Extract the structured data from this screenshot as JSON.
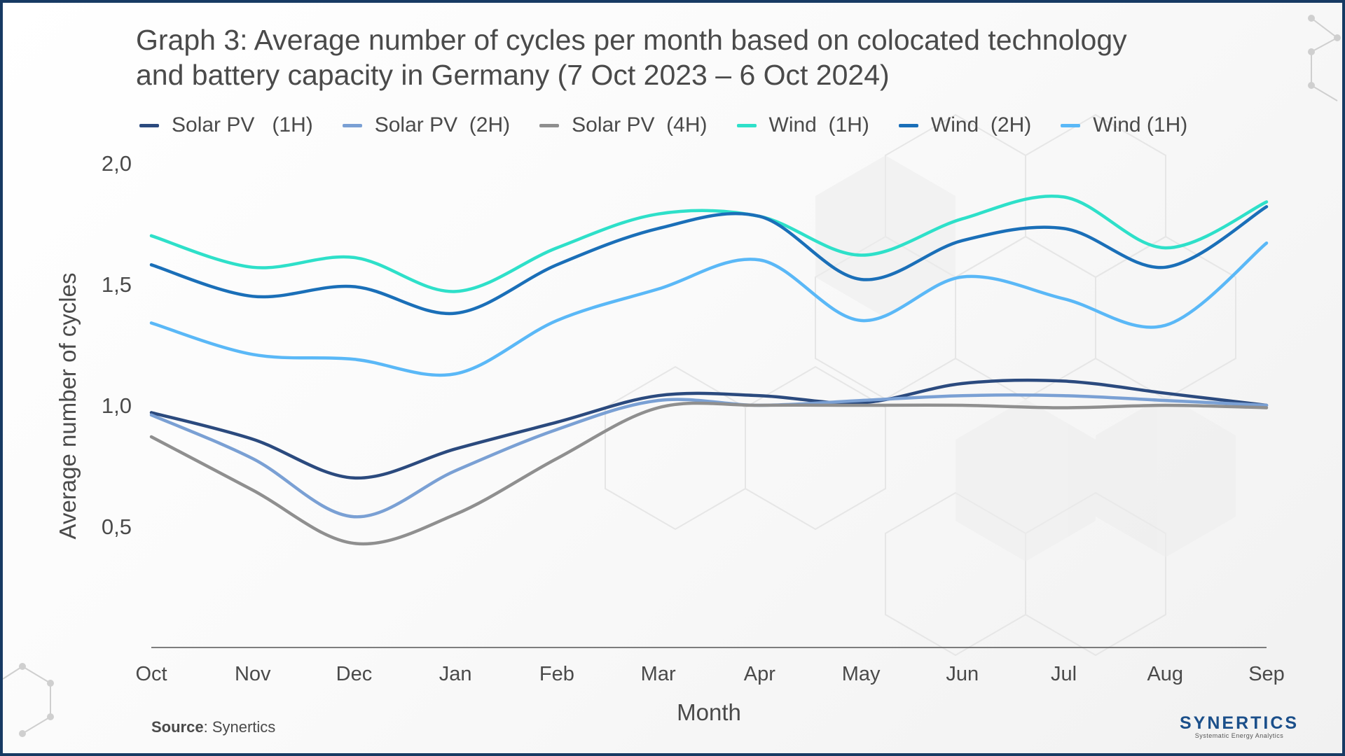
{
  "title_line1": "Graph 3: Average number of cycles per month based on colocated technology",
  "title_line2": "and battery capacity in Germany (7 Oct 2023 – 6 Oct 2024)",
  "source_label": "Source",
  "source_value": ": Synertics",
  "brand": {
    "name": "SYNERTICS",
    "tagline": "Systematic Energy Analytics"
  },
  "chart_data": {
    "type": "line",
    "xlabel": "Month",
    "ylabel": "Average number of cycles",
    "ylim": [
      0,
      2.0
    ],
    "yticks": [
      "0,5",
      "1,0",
      "1,5",
      "2,0"
    ],
    "ytick_values": [
      0.5,
      1.0,
      1.5,
      2.0
    ],
    "grid": false,
    "legend_position": "top",
    "categories": [
      "Oct",
      "Nov",
      "Dec",
      "Jan",
      "Feb",
      "Mar",
      "Apr",
      "May",
      "Jun",
      "Jul",
      "Aug",
      "Sep"
    ],
    "series": [
      {
        "name": "Solar PV   (1H)",
        "color": "#2b4a7e",
        "values": [
          0.97,
          0.86,
          0.7,
          0.82,
          0.93,
          1.04,
          1.04,
          1.01,
          1.09,
          1.1,
          1.05,
          1.0
        ]
      },
      {
        "name": "Solar PV  (2H)",
        "color": "#7aa0d4",
        "values": [
          0.96,
          0.78,
          0.54,
          0.73,
          0.9,
          1.02,
          1.0,
          1.02,
          1.04,
          1.04,
          1.02,
          1.0
        ]
      },
      {
        "name": "Solar PV  (4H)",
        "color": "#8f8f8f",
        "values": [
          0.87,
          0.65,
          0.43,
          0.55,
          0.78,
          0.99,
          1.0,
          1.0,
          1.0,
          0.99,
          1.0,
          0.99
        ]
      },
      {
        "name": "Wind  (1H)",
        "color": "#2ee0c9",
        "values": [
          1.7,
          1.57,
          1.61,
          1.47,
          1.65,
          1.79,
          1.78,
          1.62,
          1.77,
          1.86,
          1.65,
          1.84
        ]
      },
      {
        "name": "Wind  (2H)",
        "color": "#1a6fb8",
        "values": [
          1.58,
          1.45,
          1.49,
          1.38,
          1.58,
          1.73,
          1.78,
          1.52,
          1.68,
          1.73,
          1.57,
          1.82
        ]
      },
      {
        "name": "Wind (1H)",
        "color": "#5ab8f7",
        "values": [
          1.34,
          1.21,
          1.19,
          1.13,
          1.35,
          1.48,
          1.6,
          1.35,
          1.53,
          1.44,
          1.33,
          1.67
        ]
      }
    ]
  }
}
